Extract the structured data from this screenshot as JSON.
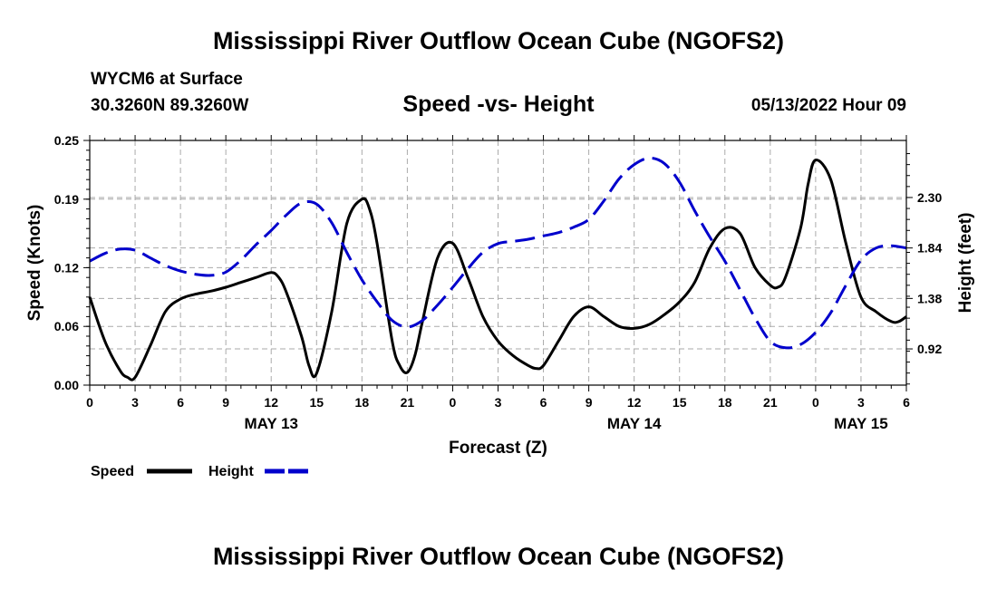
{
  "title": "Mississippi River Outflow Ocean Cube (NGOFS2)",
  "bottom_title": "Mississippi River Outflow Ocean Cube (NGOFS2)",
  "station": "WYCM6 at Surface",
  "coords": "30.3260N  89.3260W",
  "subtitle": "Speed -vs- Height",
  "datetime": "05/13/2022 Hour 09",
  "colors": {
    "speed": "#000000",
    "height": "#0000cc",
    "grid": "#aaaaaa"
  },
  "chart_data": {
    "type": "line",
    "title": "Speed -vs- Height",
    "xlabel": "Forecast (Z)",
    "ylabel": "Speed (Knots)",
    "y2label": "Height (feet)",
    "xlim": [
      0,
      54
    ],
    "ylim": [
      0,
      0.25
    ],
    "y2lim": [
      0.59,
      2.82
    ],
    "x_ticks": [
      0,
      3,
      6,
      9,
      12,
      15,
      18,
      21,
      24,
      27,
      30,
      33,
      36,
      39,
      42,
      45,
      48,
      51,
      54
    ],
    "x_tick_labels": [
      "0",
      "3",
      "6",
      "9",
      "12",
      "15",
      "18",
      "21",
      "0",
      "3",
      "6",
      "9",
      "12",
      "15",
      "18",
      "21",
      "0",
      "3",
      "6"
    ],
    "date_labels": [
      {
        "x": 12,
        "label": "MAY 13"
      },
      {
        "x": 36,
        "label": "MAY 14"
      },
      {
        "x": 51,
        "label": "MAY 15"
      }
    ],
    "y_ticks": [
      0.0,
      0.06,
      0.12,
      0.19,
      0.25
    ],
    "y_tick_labels": [
      "0.00",
      "0.06",
      "0.12",
      "0.19",
      "0.25"
    ],
    "y2_ticks": [
      0.92,
      1.38,
      1.84,
      2.3
    ],
    "y2_tick_labels": [
      "0.92",
      "1.38",
      "1.84",
      "2.30"
    ],
    "series": [
      {
        "name": "Speed",
        "axis": "left",
        "x": [
          0,
          1,
          2,
          2.5,
          3,
          4,
          5,
          6,
          7,
          8,
          9,
          10,
          11,
          12,
          12.5,
          13,
          14,
          14.5,
          15,
          16,
          17,
          18,
          18.5,
          19,
          20,
          20.5,
          21,
          21.5,
          22,
          23,
          24,
          25,
          26,
          27,
          28,
          29,
          29.5,
          30,
          31,
          32,
          33,
          34,
          35,
          36,
          37,
          38,
          39,
          40,
          41,
          42,
          43,
          44,
          45,
          45.5,
          46,
          47,
          47.5,
          48,
          49,
          50,
          51,
          52,
          53,
          53.5,
          54
        ],
        "values": [
          0.09,
          0.045,
          0.015,
          0.008,
          0.008,
          0.04,
          0.075,
          0.088,
          0.093,
          0.096,
          0.1,
          0.105,
          0.11,
          0.115,
          0.11,
          0.095,
          0.05,
          0.02,
          0.012,
          0.075,
          0.165,
          0.19,
          0.18,
          0.145,
          0.045,
          0.02,
          0.013,
          0.03,
          0.065,
          0.13,
          0.145,
          0.11,
          0.07,
          0.045,
          0.03,
          0.02,
          0.017,
          0.02,
          0.045,
          0.07,
          0.08,
          0.07,
          0.06,
          0.058,
          0.062,
          0.072,
          0.085,
          0.105,
          0.14,
          0.16,
          0.155,
          0.12,
          0.102,
          0.1,
          0.11,
          0.16,
          0.205,
          0.23,
          0.21,
          0.145,
          0.09,
          0.075,
          0.065,
          0.065,
          0.07
        ]
      },
      {
        "name": "Height",
        "axis": "right",
        "x": [
          0,
          1,
          2,
          3,
          4,
          5,
          6,
          7,
          8,
          9,
          10,
          11,
          12,
          13,
          14,
          15,
          16,
          17,
          18,
          19,
          20,
          21,
          22,
          23,
          24,
          25,
          26,
          27,
          28,
          29,
          30,
          31,
          32,
          33,
          34,
          35,
          36,
          37,
          38,
          39,
          40,
          41,
          42,
          43,
          44,
          45,
          46,
          47,
          48,
          49,
          50,
          51,
          52,
          53,
          54
        ],
        "values": [
          1.72,
          1.79,
          1.83,
          1.82,
          1.75,
          1.68,
          1.63,
          1.6,
          1.59,
          1.62,
          1.73,
          1.87,
          2.0,
          2.14,
          2.25,
          2.24,
          2.07,
          1.8,
          1.55,
          1.35,
          1.18,
          1.12,
          1.18,
          1.32,
          1.48,
          1.65,
          1.8,
          1.88,
          1.9,
          1.92,
          1.95,
          1.98,
          2.03,
          2.1,
          2.27,
          2.47,
          2.6,
          2.66,
          2.61,
          2.44,
          2.18,
          1.94,
          1.72,
          1.46,
          1.2,
          0.99,
          0.93,
          0.96,
          1.07,
          1.25,
          1.5,
          1.73,
          1.84,
          1.86,
          1.84
        ]
      }
    ],
    "legend": [
      {
        "label": "Speed",
        "series": "Speed"
      },
      {
        "label": "Height",
        "series": "Height"
      }
    ],
    "grid": true,
    "legend_position": "bottom-left"
  }
}
